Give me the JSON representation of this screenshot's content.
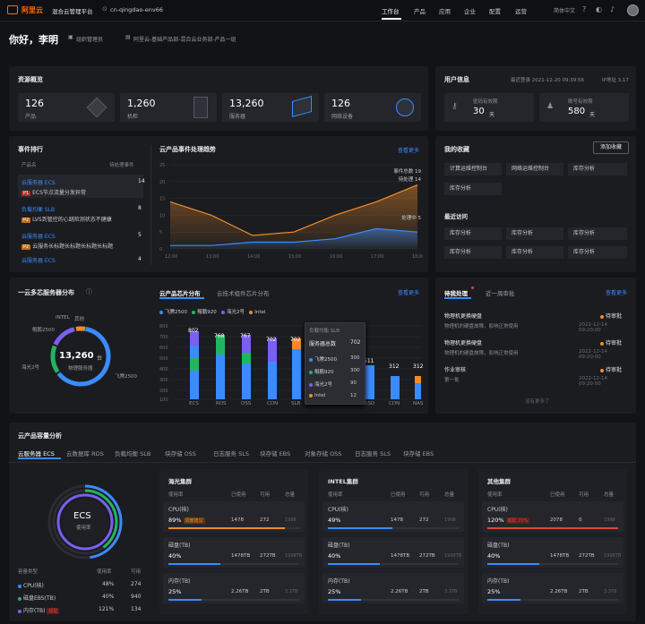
{
  "topbar": {
    "brand": "阿里云",
    "product": "混合云管理平台",
    "region": "cn-qingdao-env66",
    "nav": [
      "工作台",
      "产品",
      "应用",
      "企业",
      "配置",
      "运营"
    ],
    "lang": "简体中文"
  },
  "greeting": {
    "hello": "你好，李明",
    "role": "组织管理员",
    "path": "阿里云-基础产品部-混合云业务部-产品一组"
  },
  "overview": {
    "title": "资源概览",
    "items": [
      {
        "value": "126",
        "label": "产品"
      },
      {
        "value": "1,260",
        "label": "机柜"
      },
      {
        "value": "13,260",
        "label": "服务器"
      },
      {
        "value": "126",
        "label": "网络设备"
      }
    ]
  },
  "user_info": {
    "title": "用户信息",
    "last_login": "最近登录 2021-12-20 09:39:56",
    "ip": "IP地址 3.17",
    "pwd_label": "密码有效期",
    "pwd_value": "30",
    "pwd_unit": "天",
    "acct_label": "账号有效期",
    "acct_value": "580",
    "acct_unit": "天"
  },
  "events": {
    "title": "事件排行",
    "col1": "产品名",
    "col2": "待处理事件",
    "rows": [
      {
        "name": "云服务器 ECS",
        "count": "14",
        "tag": "P1",
        "desc": "ECS节点流量分发异常"
      },
      {
        "name": "负载均衡 SLB",
        "count": "8",
        "tag": "P2",
        "desc": "LVS到管控的心跳检测状态不健康"
      },
      {
        "name": "云服务器 ECS",
        "count": "5",
        "tag": "P2",
        "desc": "云服务长标题长标题长标题长标题"
      },
      {
        "name": "云服务器 ECS",
        "count": "4",
        "tag": "",
        "desc": ""
      }
    ]
  },
  "trend": {
    "title": "云产品事件处理趋势",
    "more": "查看更多",
    "legend_total": "事件总数 19",
    "legend_pending": "待处理 14",
    "legend_done": "处理中 5"
  },
  "chart_data": {
    "type": "area",
    "x": [
      "12:00",
      "13:00",
      "14:00",
      "15:00",
      "16:00",
      "17:00",
      "18:00"
    ],
    "ylim": [
      0,
      25
    ],
    "yticks": [
      "25",
      "20",
      "15",
      "10",
      "5",
      "0"
    ],
    "series": [
      {
        "name": "待处理",
        "values": [
          14,
          10,
          4,
          5,
          10,
          14,
          19
        ]
      },
      {
        "name": "处理中",
        "values": [
          1,
          1,
          2,
          2,
          3,
          6,
          5
        ]
      }
    ]
  },
  "favorites": {
    "title": "我的收藏",
    "add": "添加收藏",
    "items": [
      "计算运维控制台",
      "网络运维控制台",
      "库存分析",
      "库存分析"
    ],
    "recent_title": "最近访问",
    "recent": [
      "库存分析",
      "库存分析",
      "库存分析",
      "库存分析",
      "库存分析",
      "库存分析"
    ]
  },
  "servers": {
    "title": "一云多芯服务器分布",
    "total": "13,260",
    "unit": "台",
    "sub": "物理服务器",
    "labels": [
      "INTEL",
      "其他",
      "鲲鹏2500",
      "海光2号",
      "飞腾2500"
    ],
    "colors": [
      "#3a8bff",
      "#22b55f",
      "#7a5ff0",
      "#f08c2a"
    ]
  },
  "chips": {
    "tab1": "云产品芯片分布",
    "tab2": "云技术组件芯片分布",
    "more": "查看更多",
    "legend": [
      "飞腾2500",
      "鲲鹏920",
      "海光2号",
      "Intel"
    ],
    "categories": [
      "ECS",
      "RDS",
      "OSS",
      "CDN",
      "SLB",
      "",
      "",
      "SSD",
      "CDN",
      "NAS"
    ],
    "values": [
      "802",
      "768",
      "767",
      "702",
      "702",
      "",
      "",
      "511",
      "312",
      "312"
    ],
    "tooltip": {
      "title": "负载均衡 SLB",
      "head1": "服务器总数",
      "head2": "702",
      "rows": [
        [
          "飞腾2500",
          "300"
        ],
        [
          "鲲鹏920",
          "300"
        ],
        [
          "海光2号",
          "90"
        ],
        [
          "Intel",
          "12"
        ]
      ]
    }
  },
  "todo": {
    "tab1": "待我处理",
    "tab2": "近一周审批",
    "more": "查看更多",
    "items": [
      {
        "title": "物理机更换硬盘",
        "status": "待审批",
        "desc": "物理机的硬盘故障，影响正常使用",
        "time": "2022-12-14 09:20:00"
      },
      {
        "title": "物理机更换硬盘",
        "status": "待审批",
        "desc": "物理机的硬盘故障，影响正常使用",
        "time": "2022-12-14 09:20:00"
      },
      {
        "title": "作业审核",
        "status": "待审批",
        "desc": "第一批",
        "time": "2022-12-14 09:20:00"
      }
    ],
    "footer": "没有更多了"
  },
  "capacity": {
    "title": "云产品容量分析",
    "tabs": [
      "云服务器 ECS",
      "云数据库 RDS",
      "负载均衡 SLB",
      "块存储 OSS",
      "日志服务 SLS",
      "块存储 EBS",
      "对象存储 OSS",
      "日志服务 SLS",
      "块存储 EBS"
    ],
    "ring_title": "ECS",
    "ring_sub": "使用率",
    "cap_head": [
      "容量类型",
      "使用率",
      "可用"
    ],
    "cap_rows": [
      {
        "name": "CPU(核)",
        "rate": "48%",
        "avail": "274",
        "color": "#3a8bff"
      },
      {
        "name": "磁盘EBS(TB)",
        "rate": "40%",
        "avail": "940",
        "color": "#22b55f"
      },
      {
        "name": "内存(TB)",
        "rate": "121%",
        "avail": "134",
        "color": "#7a5ff0",
        "tag": "超配"
      }
    ],
    "clusters": [
      {
        "name": "海光集群",
        "head": [
          "使用率",
          "已使用",
          "可用",
          "总量"
        ],
        "rows": [
          {
            "label": "CPU(核)",
            "rate": "89%",
            "tag": "调度建议",
            "used": "1478",
            "avail": "272",
            "total": "1998",
            "fill": 0.89,
            "color": "#f08c2a"
          },
          {
            "label": "磁盘(TB)",
            "rate": "40%",
            "tag": "",
            "used": "1478TB",
            "avail": "272TB",
            "total": "1998TB",
            "fill": 0.4,
            "color": "#3a8bff"
          },
          {
            "label": "内存(TB)",
            "rate": "25%",
            "tag": "",
            "used": "2.26TB",
            "avail": "2TB",
            "total": "3.3TB",
            "fill": 0.25,
            "color": "#3a8bff"
          }
        ]
      },
      {
        "name": "INTEL集群",
        "head": [
          "使用率",
          "已使用",
          "可用",
          "总量"
        ],
        "rows": [
          {
            "label": "CPU(核)",
            "rate": "49%",
            "tag": "",
            "used": "1478",
            "avail": "272",
            "total": "1998",
            "fill": 0.49,
            "color": "#3a8bff"
          },
          {
            "label": "磁盘(TB)",
            "rate": "40%",
            "tag": "",
            "used": "1478TB",
            "avail": "272TB",
            "total": "1998TB",
            "fill": 0.4,
            "color": "#3a8bff"
          },
          {
            "label": "内存(TB)",
            "rate": "25%",
            "tag": "",
            "used": "2.26TB",
            "avail": "2TB",
            "total": "3.3TB",
            "fill": 0.25,
            "color": "#3a8bff"
          }
        ]
      },
      {
        "name": "其他集群",
        "head": [
          "使用率",
          "已使用",
          "可用",
          "总量"
        ],
        "rows": [
          {
            "label": "CPU(核)",
            "rate": "120%",
            "tag": "超配 20%",
            "used": "2078",
            "avail": "0",
            "total": "1998",
            "fill": 1,
            "color": "#e0453a"
          },
          {
            "label": "磁盘(TB)",
            "rate": "40%",
            "tag": "",
            "used": "1478TB",
            "avail": "272TB",
            "total": "1998TB",
            "fill": 0.4,
            "color": "#3a8bff"
          },
          {
            "label": "内存(TB)",
            "rate": "25%",
            "tag": "",
            "used": "2.26TB",
            "avail": "2TB",
            "total": "3.3TB",
            "fill": 0.25,
            "color": "#3a8bff"
          }
        ]
      }
    ]
  }
}
